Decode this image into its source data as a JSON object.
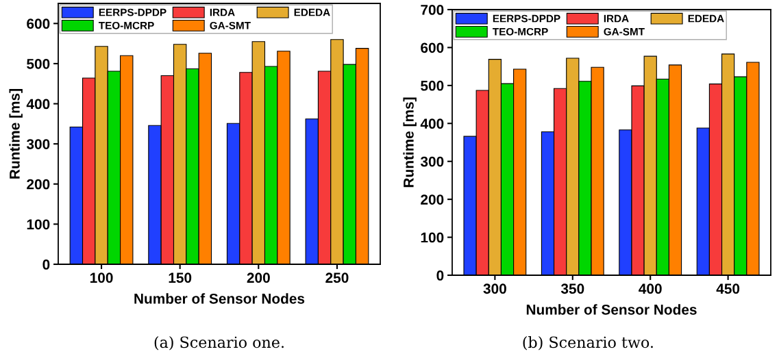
{
  "chart_data": [
    {
      "type": "bar",
      "categories": [
        "100",
        "150",
        "200",
        "250"
      ],
      "xlabel": "Number of Sensor Nodes",
      "ylabel": "Runtime [ms]",
      "ylim": [
        0,
        650
      ],
      "yticks": [
        0,
        100,
        200,
        300,
        400,
        500,
        600
      ],
      "grid": false,
      "legend": "top left",
      "annotations": [
        "(a) Scenario one."
      ],
      "series": [
        {
          "name": "EERPS-DPDP",
          "color": "#2040ff",
          "values": [
            342,
            346,
            351,
            362
          ]
        },
        {
          "name": "IRDA",
          "color": "#f73b3b",
          "values": [
            464,
            470,
            478,
            481
          ]
        },
        {
          "name": "EDEDA",
          "color": "#e5ac30",
          "values": [
            543,
            548,
            555,
            560
          ]
        },
        {
          "name": "TEO-MCRP",
          "color": "#00d600",
          "values": [
            481,
            487,
            493,
            498
          ]
        },
        {
          "name": "GA-SMT",
          "color": "#ff8000",
          "values": [
            520,
            526,
            531,
            538
          ]
        }
      ]
    },
    {
      "type": "bar",
      "categories": [
        "300",
        "350",
        "400",
        "450"
      ],
      "xlabel": "Number of Sensor Nodes",
      "ylabel": "Runtime [ms]",
      "ylim": [
        0,
        700
      ],
      "yticks": [
        0,
        100,
        200,
        300,
        400,
        500,
        600,
        700
      ],
      "grid": false,
      "legend": "top left",
      "annotations": [
        "(b) Scenario two."
      ],
      "series": [
        {
          "name": "EERPS-DPDP",
          "color": "#2040ff",
          "values": [
            366,
            378,
            383,
            388
          ]
        },
        {
          "name": "IRDA",
          "color": "#f73b3b",
          "values": [
            487,
            492,
            499,
            504
          ]
        },
        {
          "name": "EDEDA",
          "color": "#e5ac30",
          "values": [
            569,
            572,
            577,
            583
          ]
        },
        {
          "name": "TEO-MCRP",
          "color": "#00d600",
          "values": [
            505,
            511,
            517,
            523
          ]
        },
        {
          "name": "GA-SMT",
          "color": "#ff8000",
          "values": [
            543,
            548,
            554,
            561
          ]
        }
      ]
    }
  ]
}
